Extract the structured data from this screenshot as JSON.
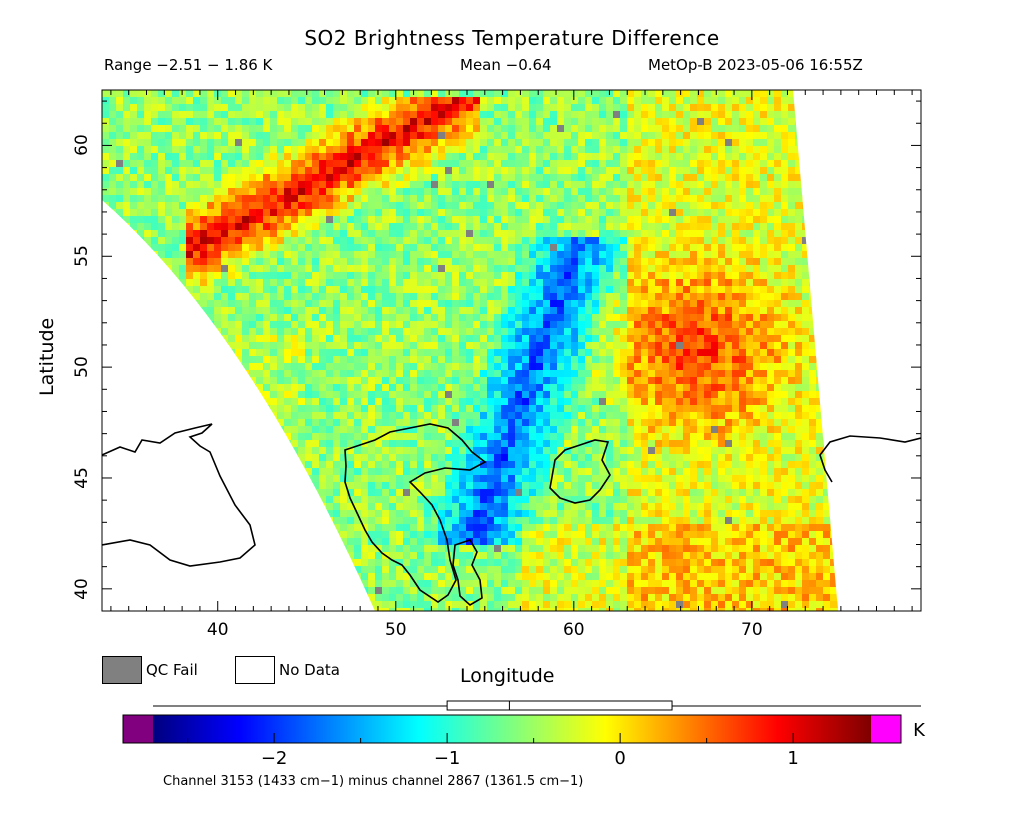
{
  "header": {
    "title": "SO2 Brightness Temperature Difference",
    "range": "Range −2.51 − 1.86 K",
    "mean": "Mean −0.64",
    "satellite_time": "MetOp-B 2023-05-06 16:55Z"
  },
  "map": {
    "xlabel": "Longitude",
    "ylabel": "Latitude",
    "xlim": [
      33.5,
      79.5
    ],
    "ylim": [
      39,
      62.5
    ],
    "xticks": [
      "40",
      "50",
      "60",
      "70"
    ],
    "xtick_values": [
      40,
      50,
      60,
      70
    ],
    "yticks": [
      "40",
      "45",
      "50",
      "55",
      "60"
    ],
    "ytick_values": [
      40,
      45,
      50,
      55,
      60
    ]
  },
  "legend": {
    "qc_fail": "QC Fail",
    "no_data": "No Data",
    "qc_color": "#808080"
  },
  "colorbar": {
    "min": -2.7,
    "max": 1.45,
    "tick_labels": [
      "−2",
      "−1",
      "0",
      "1"
    ],
    "tick_values": [
      -2,
      -1,
      0,
      1
    ],
    "unit": "K",
    "under_color": "#800080",
    "over_color": "#ff00ff",
    "box_range": [
      -1.0,
      0.3
    ],
    "box_mid": -0.64
  },
  "footnote": "Channel 3153 (1433 cm−1) minus channel 2867 (1361.5 cm−1)"
}
